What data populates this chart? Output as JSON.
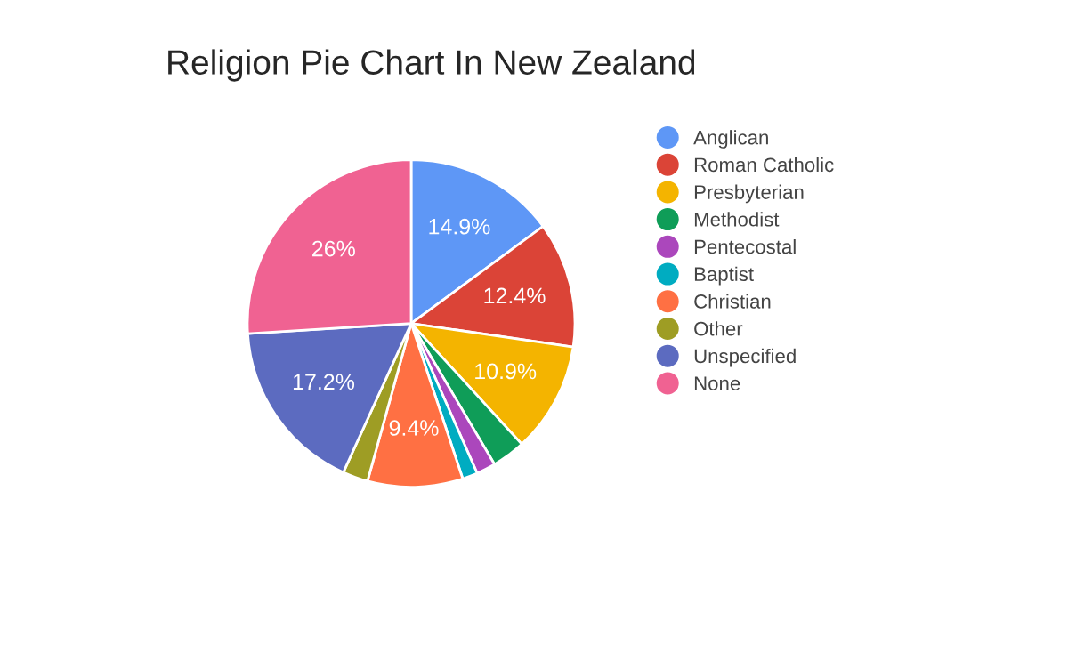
{
  "chart_data": {
    "type": "pie",
    "title": "Religion Pie Chart In New Zealand",
    "categories": [
      "Anglican",
      "Roman Catholic",
      "Presbyterian",
      "Methodist",
      "Pentecostal",
      "Baptist",
      "Christian",
      "Other",
      "Unspecified",
      "None"
    ],
    "values": [
      14.9,
      12.4,
      10.9,
      3.3,
      1.9,
      1.5,
      9.4,
      2.5,
      17.2,
      26
    ],
    "value_labels": [
      "14.9%",
      "12.4%",
      "10.9%",
      null,
      null,
      null,
      "9.4%",
      null,
      "17.2%",
      "26%"
    ],
    "colors": [
      "#5e97f6",
      "#db4437",
      "#f4b400",
      "#0f9d58",
      "#ab47bc",
      "#00acc1",
      "#ff7043",
      "#9e9d24",
      "#5c6bc0",
      "#f06292"
    ],
    "legend": "right"
  }
}
